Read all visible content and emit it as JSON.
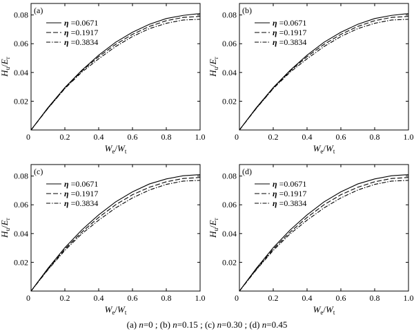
{
  "caption": {
    "panels": [
      {
        "tag": "(a)",
        "var": "n",
        "value": "=0"
      },
      {
        "tag": "(b)",
        "var": "n",
        "value": "=0.15"
      },
      {
        "tag": "(c)",
        "var": "n",
        "value": "=0.30"
      },
      {
        "tag": "(d)",
        "var": "n",
        "value": "=0.45"
      }
    ],
    "separator": "; "
  },
  "colors": {
    "line": "#000000",
    "background": "#ffffff"
  },
  "chart_data": [
    {
      "panel": "(a)",
      "type": "line",
      "xlabel": {
        "main": "W",
        "sub": "e",
        "slash": "/",
        "main2": "W",
        "sub2": "t"
      },
      "ylabel": {
        "main": "H",
        "sub": "u",
        "slash": "/",
        "main2": "E",
        "sub2": "r"
      },
      "xlim": [
        0,
        1.0
      ],
      "ylim": [
        0,
        0.088
      ],
      "xticks": [
        "0",
        "0.2",
        "0.4",
        "0.6",
        "0.8",
        "1.0"
      ],
      "yticks": [
        "0.02",
        "0.04",
        "0.06",
        "0.08"
      ],
      "legend_position": "top-left",
      "grid": false,
      "series": [
        {
          "name": "=0.0671",
          "symbol": "η",
          "style": "solid",
          "x": [
            0,
            0.1,
            0.2,
            0.3,
            0.4,
            0.5,
            0.6,
            0.7,
            0.8,
            0.9,
            1.0
          ],
          "y": [
            0,
            0.0155,
            0.0295,
            0.0415,
            0.052,
            0.061,
            0.068,
            0.0735,
            0.0775,
            0.0797,
            0.081
          ]
        },
        {
          "name": "=0.1917",
          "symbol": "η",
          "style": "dash",
          "x": [
            0,
            0.1,
            0.2,
            0.3,
            0.4,
            0.5,
            0.6,
            0.7,
            0.8,
            0.9,
            1.0
          ],
          "y": [
            0,
            0.0152,
            0.029,
            0.041,
            0.051,
            0.0595,
            0.0665,
            0.072,
            0.076,
            0.0783,
            0.079
          ]
        },
        {
          "name": "=0.3834",
          "symbol": "η",
          "style": "dashdot",
          "x": [
            0,
            0.1,
            0.2,
            0.3,
            0.4,
            0.5,
            0.6,
            0.7,
            0.8,
            0.9,
            1.0
          ],
          "y": [
            0,
            0.015,
            0.0288,
            0.0402,
            0.0495,
            0.058,
            0.065,
            0.0705,
            0.0742,
            0.0765,
            0.077
          ]
        }
      ]
    },
    {
      "panel": "(b)",
      "type": "line",
      "xlabel": {
        "main": "W",
        "sub": "e",
        "slash": "/",
        "main2": "W",
        "sub2": "t"
      },
      "ylabel": {
        "main": "H",
        "sub": "u",
        "slash": "/",
        "main2": "E",
        "sub2": "r"
      },
      "xlim": [
        0,
        1.0
      ],
      "ylim": [
        0,
        0.088
      ],
      "xticks": [
        "0",
        "0.2",
        "0.4",
        "0.6",
        "0.8",
        "1.0"
      ],
      "yticks": [
        "0.02",
        "0.04",
        "0.06",
        "0.08"
      ],
      "legend_position": "top-left",
      "grid": false,
      "series": [
        {
          "name": "=0.0671",
          "symbol": "η",
          "style": "solid",
          "x": [
            0,
            0.1,
            0.2,
            0.3,
            0.4,
            0.5,
            0.6,
            0.7,
            0.8,
            0.9,
            1.0
          ],
          "y": [
            0,
            0.0155,
            0.0295,
            0.0415,
            0.052,
            0.061,
            0.068,
            0.0735,
            0.0775,
            0.0797,
            0.081
          ]
        },
        {
          "name": "=0.1917",
          "symbol": "η",
          "style": "dash",
          "x": [
            0,
            0.1,
            0.2,
            0.3,
            0.4,
            0.5,
            0.6,
            0.7,
            0.8,
            0.9,
            1.0
          ],
          "y": [
            0,
            0.0152,
            0.029,
            0.041,
            0.051,
            0.0595,
            0.0665,
            0.072,
            0.076,
            0.0783,
            0.079
          ]
        },
        {
          "name": "=0.3834",
          "symbol": "η",
          "style": "dashdot",
          "x": [
            0,
            0.1,
            0.2,
            0.3,
            0.4,
            0.5,
            0.6,
            0.7,
            0.8,
            0.9,
            1.0
          ],
          "y": [
            0,
            0.015,
            0.0288,
            0.0402,
            0.0495,
            0.058,
            0.065,
            0.0705,
            0.0742,
            0.0765,
            0.077
          ]
        }
      ]
    },
    {
      "panel": "(c)",
      "type": "line",
      "xlabel": {
        "main": "W",
        "sub": "e",
        "slash": "/",
        "main2": "W",
        "sub2": "t"
      },
      "ylabel": {
        "main": "H",
        "sub": "u",
        "slash": "/",
        "main2": "E",
        "sub2": "r"
      },
      "xlim": [
        0,
        1.0
      ],
      "ylim": [
        0,
        0.088
      ],
      "xticks": [
        "0",
        "0.2",
        "0.4",
        "0.6",
        "0.8",
        "1.0"
      ],
      "yticks": [
        "0.02",
        "0.04",
        "0.06",
        "0.08"
      ],
      "legend_position": "top-left",
      "grid": false,
      "series": [
        {
          "name": "=0.0671",
          "symbol": "η",
          "style": "solid",
          "x": [
            0,
            0.1,
            0.2,
            0.3,
            0.4,
            0.5,
            0.6,
            0.7,
            0.8,
            0.9,
            1.0
          ],
          "y": [
            0,
            0.0158,
            0.0302,
            0.0425,
            0.053,
            0.062,
            0.069,
            0.0745,
            0.078,
            0.0802,
            0.081
          ]
        },
        {
          "name": "=0.1917",
          "symbol": "η",
          "style": "dash",
          "x": [
            0,
            0.1,
            0.2,
            0.3,
            0.4,
            0.5,
            0.6,
            0.7,
            0.8,
            0.9,
            1.0
          ],
          "y": [
            0,
            0.0152,
            0.0292,
            0.041,
            0.0512,
            0.06,
            0.067,
            0.0722,
            0.076,
            0.0783,
            0.079
          ]
        },
        {
          "name": "=0.3834",
          "symbol": "η",
          "style": "dashdot",
          "x": [
            0,
            0.1,
            0.2,
            0.3,
            0.4,
            0.5,
            0.6,
            0.7,
            0.8,
            0.9,
            1.0
          ],
          "y": [
            0,
            0.0148,
            0.0283,
            0.0398,
            0.0493,
            0.0578,
            0.0648,
            0.0703,
            0.0742,
            0.0765,
            0.077
          ]
        }
      ]
    },
    {
      "panel": "(d)",
      "type": "line",
      "xlabel": {
        "main": "W",
        "sub": "e",
        "slash": "/",
        "main2": "W",
        "sub2": "t"
      },
      "ylabel": {
        "main": "H",
        "sub": "u",
        "slash": "/",
        "main2": "E",
        "sub2": "r"
      },
      "xlim": [
        0,
        1.0
      ],
      "ylim": [
        0,
        0.088
      ],
      "xticks": [
        "0",
        "0.2",
        "0.4",
        "0.6",
        "0.8",
        "1.0"
      ],
      "yticks": [
        "0.02",
        "0.04",
        "0.06",
        "0.08"
      ],
      "legend_position": "top-left",
      "grid": false,
      "series": [
        {
          "name": "=0.0671",
          "symbol": "η",
          "style": "solid",
          "x": [
            0,
            0.1,
            0.2,
            0.3,
            0.4,
            0.5,
            0.6,
            0.7,
            0.8,
            0.9,
            1.0
          ],
          "y": [
            0,
            0.0158,
            0.0302,
            0.0425,
            0.053,
            0.062,
            0.069,
            0.0745,
            0.078,
            0.0802,
            0.081
          ]
        },
        {
          "name": "=0.1917",
          "symbol": "η",
          "style": "dash",
          "x": [
            0,
            0.1,
            0.2,
            0.3,
            0.4,
            0.5,
            0.6,
            0.7,
            0.8,
            0.9,
            1.0
          ],
          "y": [
            0,
            0.0152,
            0.0292,
            0.041,
            0.0512,
            0.06,
            0.067,
            0.0722,
            0.076,
            0.0783,
            0.079
          ]
        },
        {
          "name": "=0.3834",
          "symbol": "η",
          "style": "dashdot",
          "x": [
            0,
            0.1,
            0.2,
            0.3,
            0.4,
            0.5,
            0.6,
            0.7,
            0.8,
            0.9,
            1.0
          ],
          "y": [
            0,
            0.0148,
            0.0283,
            0.0398,
            0.0493,
            0.0578,
            0.0648,
            0.0703,
            0.0742,
            0.0765,
            0.077
          ]
        }
      ]
    }
  ]
}
